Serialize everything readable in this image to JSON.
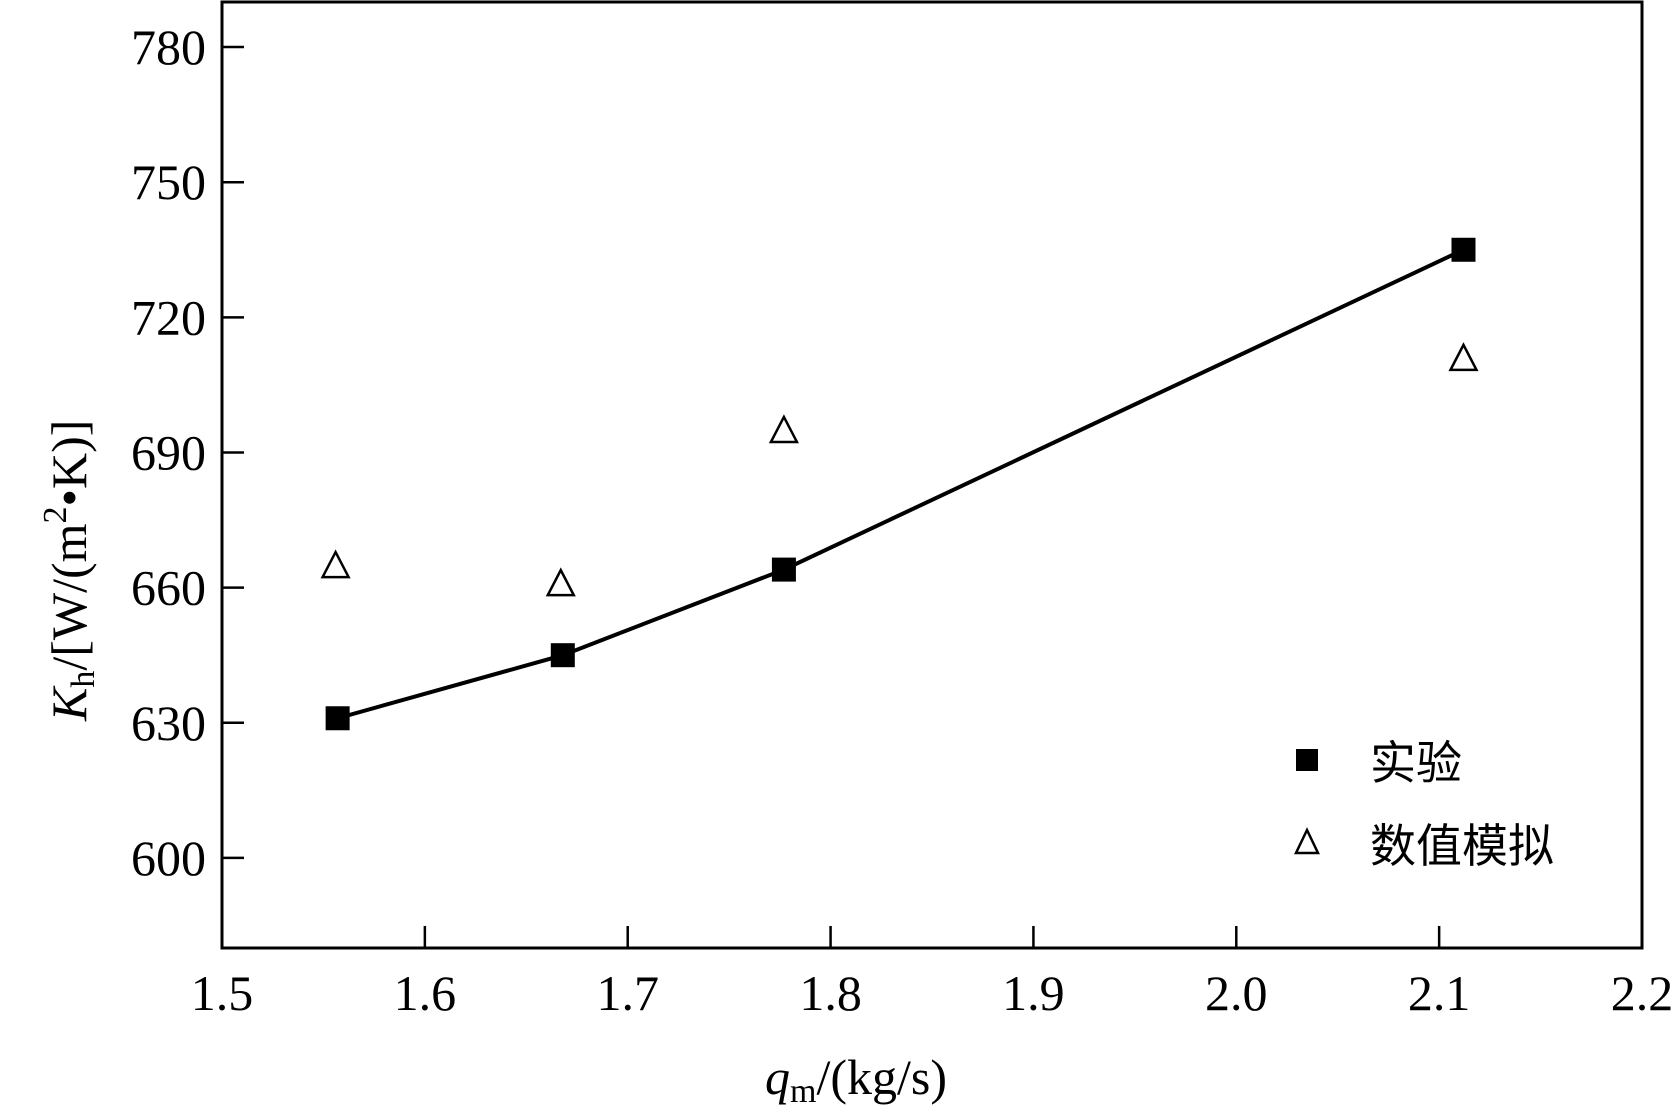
{
  "chart_data": {
    "type": "line",
    "x_axis": {
      "label_var": "q",
      "label_sub": "m",
      "label_unit": "/(kg/s)",
      "range": [
        1.5,
        2.2
      ],
      "ticks": [
        1.5,
        1.6,
        1.7,
        1.8,
        1.9,
        2.0,
        2.1,
        2.2
      ],
      "tick_labels": [
        "1.5",
        "1.6",
        "1.7",
        "1.8",
        "1.9",
        "2.0",
        "2.1",
        "2.2"
      ]
    },
    "y_axis": {
      "label_var": "K",
      "label_sub": "h",
      "label_unit_pre": "/[W/(m",
      "label_sup": "2",
      "label_unit_post": "•K)]",
      "range": [
        580,
        790
      ],
      "ticks": [
        600,
        630,
        660,
        690,
        720,
        750,
        780
      ],
      "tick_labels": [
        "600",
        "630",
        "660",
        "690",
        "720",
        "750",
        "780"
      ]
    },
    "series": [
      {
        "name": "实验",
        "marker": "filled-square",
        "connected": true,
        "x": [
          1.557,
          1.668,
          1.777,
          2.112
        ],
        "y": [
          631,
          645,
          664,
          735
        ]
      },
      {
        "name": "数值模拟",
        "marker": "open-triangle",
        "connected": false,
        "x": [
          1.556,
          1.667,
          1.777,
          2.112
        ],
        "y": [
          665,
          661,
          695,
          711
        ]
      }
    ],
    "legend": {
      "position": "bottom-right"
    },
    "grid": false,
    "colors": {
      "line": "#000000",
      "marker": "#000000",
      "background": "#ffffff"
    }
  }
}
